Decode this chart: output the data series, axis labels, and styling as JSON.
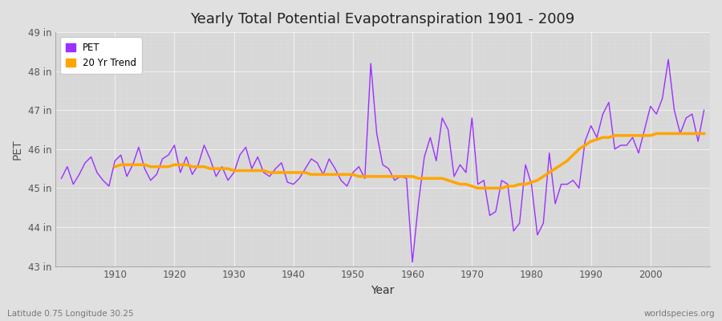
{
  "title": "Yearly Total Potential Evapotranspiration 1901 - 2009",
  "xlabel": "Year",
  "ylabel": "PET",
  "subtitle_left": "Latitude 0.75 Longitude 30.25",
  "subtitle_right": "worldspecies.org",
  "ylim": [
    43,
    49
  ],
  "yticks": [
    43,
    44,
    45,
    46,
    47,
    48,
    49
  ],
  "ytick_labels": [
    "43 in",
    "44 in",
    "45 in",
    "46 in",
    "47 in",
    "48 in",
    "49 in"
  ],
  "xticks": [
    1910,
    1920,
    1930,
    1940,
    1950,
    1960,
    1970,
    1980,
    1990,
    2000
  ],
  "xlim": [
    1900,
    2010
  ],
  "pet_color": "#9B30FF",
  "trend_color": "#FFA500",
  "fig_bg_color": "#E0E0E0",
  "plot_bg_color": "#D8D8D8",
  "legend_pet": "PET",
  "legend_trend": "20 Yr Trend",
  "years": [
    1901,
    1902,
    1903,
    1904,
    1905,
    1906,
    1907,
    1908,
    1909,
    1910,
    1911,
    1912,
    1913,
    1914,
    1915,
    1916,
    1917,
    1918,
    1919,
    1920,
    1921,
    1922,
    1923,
    1924,
    1925,
    1926,
    1927,
    1928,
    1929,
    1930,
    1931,
    1932,
    1933,
    1934,
    1935,
    1936,
    1937,
    1938,
    1939,
    1940,
    1941,
    1942,
    1943,
    1944,
    1945,
    1946,
    1947,
    1948,
    1949,
    1950,
    1951,
    1952,
    1953,
    1954,
    1955,
    1956,
    1957,
    1958,
    1959,
    1960,
    1961,
    1962,
    1963,
    1964,
    1965,
    1966,
    1967,
    1968,
    1969,
    1970,
    1971,
    1972,
    1973,
    1974,
    1975,
    1976,
    1977,
    1978,
    1979,
    1980,
    1981,
    1982,
    1983,
    1984,
    1985,
    1986,
    1987,
    1988,
    1989,
    1990,
    1991,
    1992,
    1993,
    1994,
    1995,
    1996,
    1997,
    1998,
    1999,
    2000,
    2001,
    2002,
    2003,
    2004,
    2005,
    2006,
    2007,
    2008,
    2009
  ],
  "pet_values": [
    45.25,
    45.55,
    45.1,
    45.35,
    45.65,
    45.8,
    45.4,
    45.2,
    45.05,
    45.7,
    45.85,
    45.3,
    45.6,
    46.05,
    45.5,
    45.2,
    45.35,
    45.75,
    45.85,
    46.1,
    45.4,
    45.8,
    45.35,
    45.6,
    46.1,
    45.75,
    45.3,
    45.55,
    45.2,
    45.4,
    45.85,
    46.05,
    45.5,
    45.8,
    45.4,
    45.3,
    45.5,
    45.65,
    45.15,
    45.1,
    45.25,
    45.5,
    45.75,
    45.65,
    45.35,
    45.75,
    45.5,
    45.2,
    45.05,
    45.4,
    45.55,
    45.25,
    48.2,
    46.4,
    45.6,
    45.5,
    45.2,
    45.3,
    45.25,
    43.1,
    44.6,
    45.8,
    46.3,
    45.7,
    46.8,
    46.5,
    45.3,
    45.6,
    45.4,
    46.8,
    45.1,
    45.2,
    44.3,
    44.4,
    45.2,
    45.1,
    43.9,
    44.1,
    45.6,
    45.1,
    43.8,
    44.1,
    45.9,
    44.6,
    45.1,
    45.1,
    45.2,
    45.0,
    46.2,
    46.6,
    46.3,
    46.9,
    47.2,
    46.0,
    46.1,
    46.1,
    46.3,
    45.9,
    46.5,
    47.1,
    46.9,
    47.3,
    48.3,
    47.0,
    46.4,
    46.8,
    46.9,
    46.2,
    47.0
  ],
  "trend_years": [
    1910,
    1911,
    1912,
    1913,
    1914,
    1915,
    1916,
    1917,
    1918,
    1919,
    1920,
    1921,
    1922,
    1923,
    1924,
    1925,
    1926,
    1927,
    1928,
    1929,
    1930,
    1931,
    1932,
    1933,
    1934,
    1935,
    1936,
    1937,
    1938,
    1939,
    1940,
    1941,
    1942,
    1943,
    1944,
    1945,
    1946,
    1947,
    1948,
    1949,
    1950,
    1951,
    1952,
    1953,
    1954,
    1955,
    1956,
    1957,
    1958,
    1959,
    1960,
    1961,
    1962,
    1963,
    1964,
    1965,
    1966,
    1967,
    1968,
    1969,
    1970,
    1971,
    1972,
    1973,
    1974,
    1975,
    1976,
    1977,
    1978,
    1979,
    1980,
    1981,
    1982,
    1983,
    1984,
    1985,
    1986,
    1987,
    1988,
    1989,
    1990,
    1991,
    1992,
    1993,
    1994,
    1995,
    1996,
    1997,
    1998,
    1999,
    2000,
    2001,
    2002,
    2003,
    2004,
    2005,
    2006,
    2007,
    2008,
    2009
  ],
  "trend_values": [
    45.55,
    45.6,
    45.6,
    45.6,
    45.6,
    45.6,
    45.55,
    45.55,
    45.55,
    45.55,
    45.6,
    45.6,
    45.6,
    45.55,
    45.55,
    45.55,
    45.5,
    45.5,
    45.5,
    45.5,
    45.45,
    45.45,
    45.45,
    45.45,
    45.45,
    45.45,
    45.4,
    45.4,
    45.4,
    45.4,
    45.4,
    45.4,
    45.4,
    45.35,
    45.35,
    45.35,
    45.35,
    45.35,
    45.35,
    45.35,
    45.35,
    45.3,
    45.3,
    45.3,
    45.3,
    45.3,
    45.3,
    45.3,
    45.3,
    45.3,
    45.3,
    45.25,
    45.25,
    45.25,
    45.25,
    45.25,
    45.2,
    45.15,
    45.1,
    45.1,
    45.05,
    45.0,
    45.0,
    45.0,
    45.0,
    45.0,
    45.05,
    45.05,
    45.1,
    45.1,
    45.15,
    45.2,
    45.3,
    45.4,
    45.5,
    45.6,
    45.7,
    45.85,
    46.0,
    46.1,
    46.2,
    46.25,
    46.3,
    46.3,
    46.35,
    46.35,
    46.35,
    46.35,
    46.35,
    46.35,
    46.35,
    46.4,
    46.4,
    46.4,
    46.4,
    46.4,
    46.4,
    46.4,
    46.4,
    46.4
  ]
}
